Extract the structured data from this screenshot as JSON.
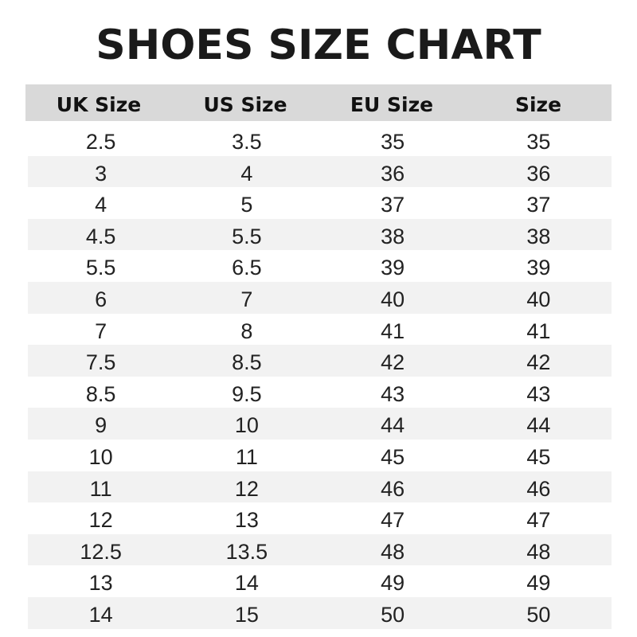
{
  "title": "SHOES SIZE CHART",
  "columns": [
    "UK Size",
    "US Size",
    "EU Size",
    "Size"
  ],
  "rows": [
    [
      "2.5",
      "3.5",
      "35",
      "35"
    ],
    [
      "3",
      "4",
      "36",
      "36"
    ],
    [
      "4",
      "5",
      "37",
      "37"
    ],
    [
      "4.5",
      "5.5",
      "38",
      "38"
    ],
    [
      "5.5",
      "6.5",
      "39",
      "39"
    ],
    [
      "6",
      "7",
      "40",
      "40"
    ],
    [
      "7",
      "8",
      "41",
      "41"
    ],
    [
      "7.5",
      "8.5",
      "42",
      "42"
    ],
    [
      "8.5",
      "9.5",
      "43",
      "43"
    ],
    [
      "9",
      "10",
      "44",
      "44"
    ],
    [
      "10",
      "11",
      "45",
      "45"
    ],
    [
      "11",
      "12",
      "46",
      "46"
    ],
    [
      "12",
      "13",
      "47",
      "47"
    ],
    [
      "12.5",
      "13.5",
      "48",
      "48"
    ],
    [
      "13",
      "14",
      "49",
      "49"
    ],
    [
      "14",
      "15",
      "50",
      "50"
    ]
  ],
  "colors": {
    "header_bg": "#d9d9d9",
    "stripe_bg": "#f2f2f2"
  }
}
